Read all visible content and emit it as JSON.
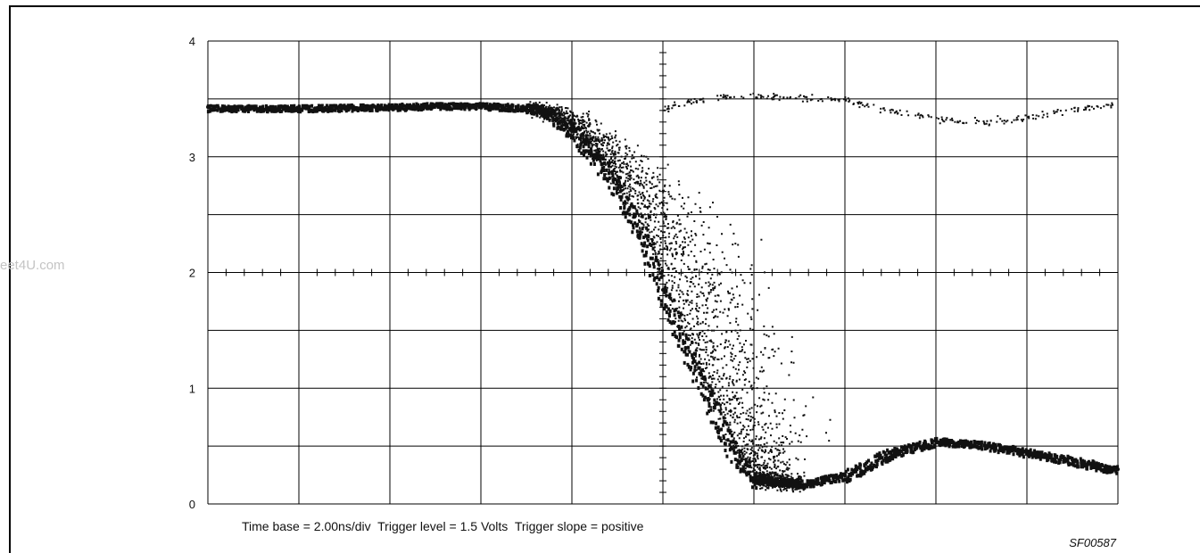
{
  "watermark": "eet4U.com",
  "caption": "Time base = 2.00ns/div  Trigger level = 1.5 Volts  Trigger slope = positive",
  "figure_id": "SF00587",
  "colors": {
    "trace": "#111111",
    "grid": "#000000",
    "background": "#ffffff"
  },
  "chart_data": {
    "type": "scatter",
    "title": "",
    "xlabel": "",
    "ylabel": "",
    "xlim": [
      0,
      20
    ],
    "ylim": [
      0,
      4
    ],
    "x_unit": "ns",
    "y_unit": "V",
    "y_ticks": [
      0,
      1,
      2,
      3,
      4
    ],
    "y_tick_labels": [
      "0",
      "1",
      "2",
      "3",
      "4"
    ],
    "x_divisions": 10,
    "y_divisions": 8,
    "grid": true,
    "center_crosshair": {
      "x": 10,
      "y": 2
    },
    "series": [
      {
        "x": [
          0,
          2,
          4,
          5,
          6,
          7,
          7.5,
          8,
          8.5,
          9,
          9.5,
          10,
          10.5,
          11,
          11.5,
          12,
          13,
          14,
          15,
          16,
          17,
          18,
          19,
          20
        ],
        "y": [
          3.43,
          3.43,
          3.44,
          3.45,
          3.45,
          3.43,
          3.38,
          3.22,
          3.0,
          2.72,
          2.35,
          1.85,
          1.35,
          0.9,
          0.48,
          0.22,
          0.18,
          0.25,
          0.45,
          0.55,
          0.52,
          0.45,
          0.38,
          0.3
        ]
      }
    ],
    "secondary_trace": {
      "x": [
        10,
        11,
        12,
        13,
        14,
        15,
        16,
        17,
        18,
        19,
        20
      ],
      "y": [
        3.42,
        3.52,
        3.53,
        3.51,
        3.5,
        3.4,
        3.34,
        3.3,
        3.35,
        3.42,
        3.46
      ]
    }
  }
}
